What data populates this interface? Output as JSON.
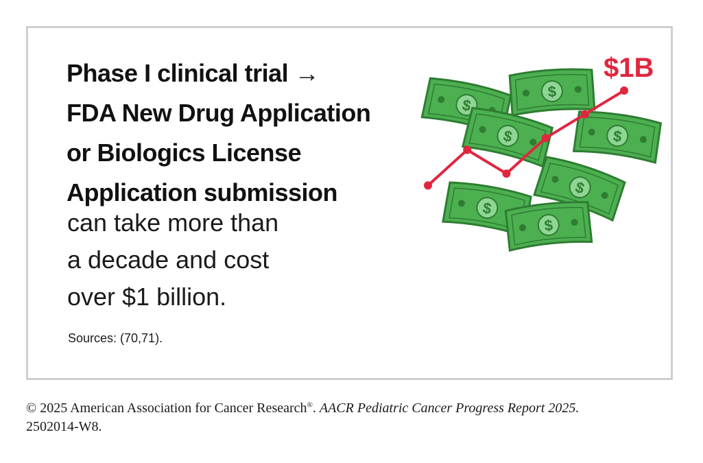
{
  "headline": {
    "line1": "Phase I clinical trial →",
    "line2": "FDA New Drug Application",
    "line3": "or Biologics License",
    "line4": "Application submission"
  },
  "body": {
    "line1": "can take more than",
    "line2": "a decade and cost",
    "line3": "over $1 billion."
  },
  "sources": "Sources: (70,71).",
  "illustration": {
    "label": "$1B",
    "bill_symbol": "$",
    "accent_color": "#e0263f",
    "bill_color": "#4caf50",
    "bill_dark": "#2e7d32",
    "trend": [
      2,
      5,
      3,
      6,
      8,
      10
    ]
  },
  "footer": {
    "copyright": "© 2025 American Association for Cancer Research",
    "reg": "®",
    "separator": ". ",
    "report": "AACR Pediatric Cancer Progress Report 2025.",
    "code": "2502014-W8."
  }
}
